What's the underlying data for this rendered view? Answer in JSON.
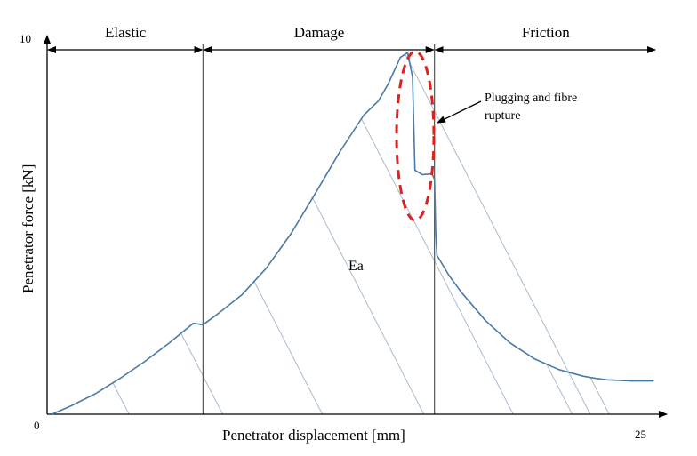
{
  "chart_data": {
    "type": "line",
    "title": "",
    "xlabel": "Penetrator displacement [mm]",
    "ylabel": "Penetrator force [kN]",
    "xlim": [
      0,
      25
    ],
    "ylim": [
      0,
      10
    ],
    "x_ticks": [
      "0",
      "25"
    ],
    "y_ticks": [
      "10"
    ],
    "regions": [
      {
        "label": "Elastic",
        "from": 0,
        "to": 6.4
      },
      {
        "label": "Damage",
        "from": 6.4,
        "to": 15.9
      },
      {
        "label": "Friction",
        "from": 15.9,
        "to": 25
      }
    ],
    "area_label": "Ea",
    "annotation": "Plugging and fibre rupture",
    "colors": {
      "curve": "#4a7aa6",
      "hatch": "#a9bccf",
      "highlight": "#e0201b",
      "axis": "#000000",
      "boundary": "#555555"
    },
    "series": [
      {
        "x": [
          0.2,
          1.0,
          2.0,
          3.0,
          4.0,
          5.0,
          6.0,
          6.4,
          7.0,
          8.0,
          9.0,
          10.0,
          11.0,
          12.0,
          13.0,
          13.6,
          14.0,
          14.5,
          14.8,
          15.0,
          15.1,
          15.4,
          15.8,
          15.9,
          15.95,
          16.0,
          16.5,
          17.0,
          18.0,
          19.0,
          20.0,
          21.0,
          22.0,
          22.5,
          23.0,
          24.0,
          24.9
        ],
        "y": [
          0.0,
          0.23,
          0.56,
          0.97,
          1.42,
          1.92,
          2.46,
          2.42,
          2.71,
          3.23,
          3.95,
          4.87,
          5.96,
          7.08,
          8.09,
          8.47,
          8.93,
          9.65,
          9.78,
          9.12,
          6.6,
          6.48,
          6.5,
          6.35,
          5.0,
          4.3,
          3.75,
          3.3,
          2.53,
          1.93,
          1.5,
          1.21,
          1.03,
          0.97,
          0.93,
          0.9,
          0.9
        ]
      }
    ]
  }
}
